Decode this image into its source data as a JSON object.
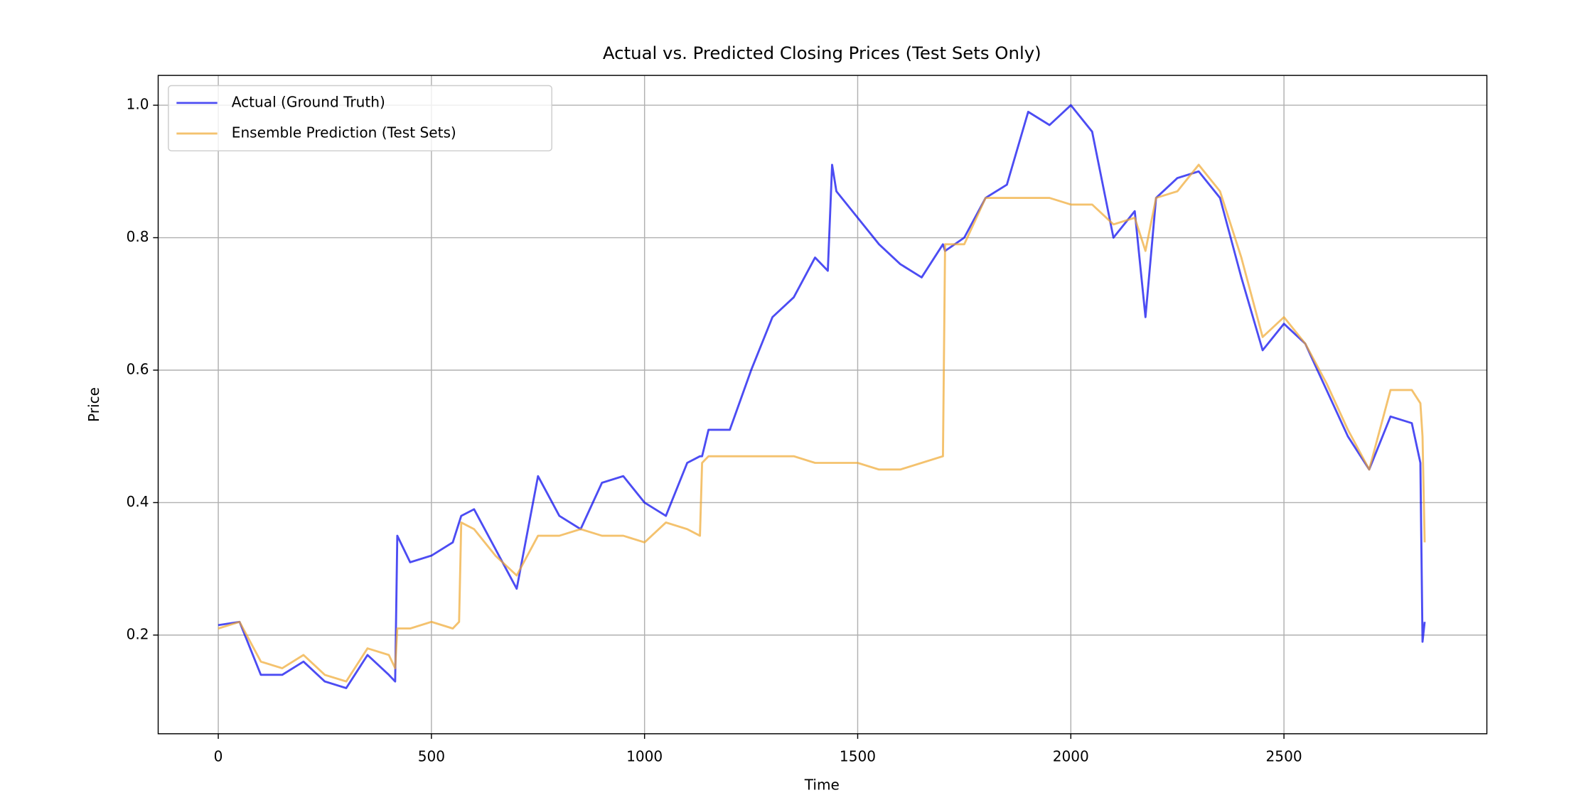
{
  "chart_data": {
    "type": "line",
    "title": "Actual vs. Predicted Closing Prices (Test Sets Only)",
    "x_label": "Time",
    "y_label": "Price",
    "x": [
      0,
      50,
      100,
      150,
      200,
      250,
      300,
      350,
      400,
      415,
      420,
      450,
      500,
      550,
      565,
      570,
      600,
      650,
      700,
      750,
      800,
      850,
      900,
      950,
      1000,
      1050,
      1100,
      1130,
      1135,
      1150,
      1200,
      1250,
      1300,
      1350,
      1400,
      1430,
      1440,
      1450,
      1500,
      1550,
      1600,
      1650,
      1700,
      1705,
      1750,
      1800,
      1850,
      1900,
      1950,
      2000,
      2050,
      2100,
      2150,
      2175,
      2200,
      2250,
      2300,
      2350,
      2400,
      2450,
      2500,
      2550,
      2600,
      2650,
      2700,
      2750,
      2800,
      2820,
      2825,
      2830
    ],
    "series": [
      {
        "name": "Actual (Ground Truth)",
        "color": "#0000ee",
        "values": [
          0.215,
          0.22,
          0.14,
          0.14,
          0.16,
          0.13,
          0.12,
          0.17,
          0.14,
          0.13,
          0.35,
          0.31,
          0.32,
          0.34,
          0.37,
          0.38,
          0.39,
          0.33,
          0.27,
          0.44,
          0.38,
          0.36,
          0.43,
          0.44,
          0.4,
          0.38,
          0.46,
          0.47,
          0.47,
          0.51,
          0.51,
          0.6,
          0.68,
          0.71,
          0.77,
          0.75,
          0.91,
          0.87,
          0.83,
          0.79,
          0.76,
          0.74,
          0.79,
          0.78,
          0.8,
          0.86,
          0.88,
          0.99,
          0.97,
          1.0,
          0.96,
          0.8,
          0.84,
          0.68,
          0.86,
          0.89,
          0.9,
          0.86,
          0.74,
          0.63,
          0.67,
          0.64,
          0.57,
          0.5,
          0.45,
          0.53,
          0.52,
          0.46,
          0.19,
          0.22
        ]
      },
      {
        "name": "Ensemble Prediction (Test Sets)",
        "color": "#f0a830",
        "values": [
          0.21,
          0.22,
          0.16,
          0.15,
          0.17,
          0.14,
          0.13,
          0.18,
          0.17,
          0.15,
          0.21,
          0.21,
          0.22,
          0.21,
          0.22,
          0.37,
          0.36,
          0.32,
          0.29,
          0.35,
          0.35,
          0.36,
          0.35,
          0.35,
          0.34,
          0.37,
          0.36,
          0.35,
          0.46,
          0.47,
          0.47,
          0.47,
          0.47,
          0.47,
          0.46,
          0.46,
          0.46,
          0.46,
          0.46,
          0.45,
          0.45,
          0.46,
          0.47,
          0.79,
          0.79,
          0.86,
          0.86,
          0.86,
          0.86,
          0.85,
          0.85,
          0.82,
          0.83,
          0.78,
          0.86,
          0.87,
          0.91,
          0.87,
          0.77,
          0.65,
          0.68,
          0.64,
          0.58,
          0.51,
          0.45,
          0.57,
          0.57,
          0.55,
          0.5,
          0.34
        ]
      }
    ],
    "xlim": [
      -141,
      2976
    ],
    "ylim": [
      0.051,
      1.045
    ],
    "xticks": [
      0,
      500,
      1000,
      1500,
      2000,
      2500
    ],
    "yticks": [
      0.2,
      0.4,
      0.6,
      0.8,
      {
        "value": 1,
        "label": "1.0"
      }
    ],
    "grid": true,
    "legend": "upper left"
  }
}
